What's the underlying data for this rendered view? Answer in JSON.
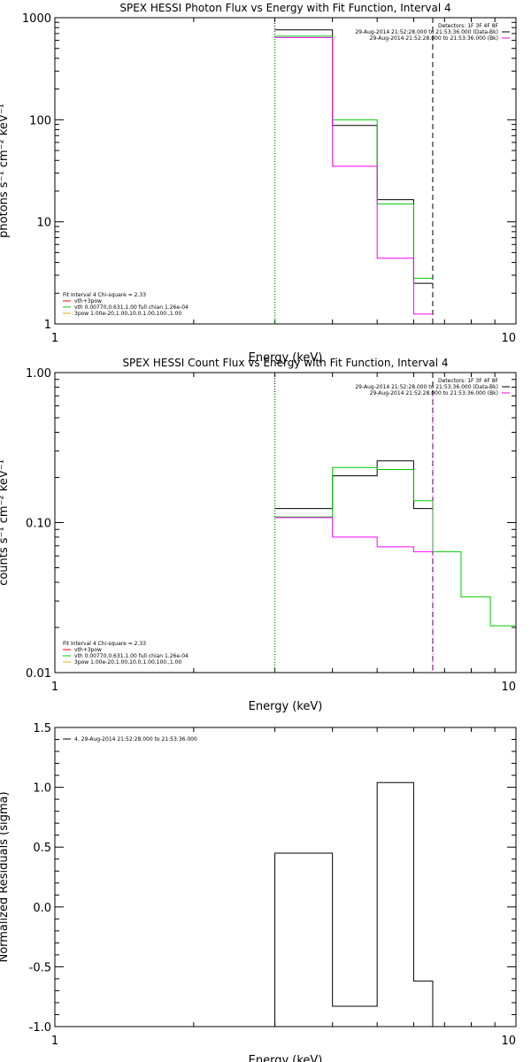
{
  "chart_data": [
    {
      "type": "line",
      "title": "SPEX HESSI Photon Flux vs Energy with Fit Function, Interval 4",
      "xlabel": "Energy (keV)",
      "ylabel": "photons s⁻¹ cm⁻² keV⁻¹",
      "xscale": "log",
      "yscale": "log",
      "xlim": [
        1,
        10
      ],
      "ylim": [
        1,
        1000
      ],
      "xticks": [
        {
          "v": 1,
          "label": "1"
        },
        {
          "v": 10,
          "label": "10"
        }
      ],
      "yticks": [
        {
          "v": 1,
          "label": "1"
        },
        {
          "v": 10,
          "label": "10"
        },
        {
          "v": 100,
          "label": "100"
        },
        {
          "v": 1000,
          "label": "1000"
        }
      ],
      "vlines": [
        {
          "x": 3.0,
          "style": "dotted",
          "color": "#000000"
        },
        {
          "x": 6.6,
          "style": "dashed",
          "color": "#000000"
        }
      ],
      "legend_top": {
        "position": "top-right",
        "lines": [
          {
            "text": "Detectors: 1F 3F 4F 8F",
            "color": ""
          },
          {
            "text": "29-Aug-2014 21:52:28.000 to 21:53:36.000 (Data-Bk)",
            "color": "#000000"
          },
          {
            "text": "29-Aug-2014 21:52:28.000 to 21:53:36.000 (Bk)",
            "color": "#ff00ff"
          }
        ]
      },
      "legend_bottom": {
        "position": "bottom-left",
        "lines": [
          {
            "text": "Fit Interval 4   Chi-square = 2.33",
            "color": ""
          },
          {
            "text": "vth+3pow",
            "color": "#ff0000"
          },
          {
            "text": "vth 0.00770,0.631,1.00   full chian 1.26e-04",
            "color": "#00cc00"
          },
          {
            "text": "3pow 1.00e-20,1.00,10.0,1.00,100.,1.00",
            "color": "#e0b000"
          }
        ]
      },
      "series": [
        {
          "color": "#000000",
          "edges": [
            3.0,
            4.0,
            5.0,
            6.0,
            6.6
          ],
          "values": [
            760,
            88,
            16.5,
            2.5
          ]
        },
        {
          "color": "#00cc00",
          "edges": [
            3.0,
            4.0,
            5.0,
            6.0,
            6.6
          ],
          "values": [
            660,
            100,
            15,
            2.8
          ]
        },
        {
          "color": "#ff00ff",
          "edges": [
            3.0,
            4.0,
            5.0,
            6.0,
            6.6
          ],
          "values": [
            640,
            35,
            4.4,
            1.25
          ]
        }
      ],
      "drops": [
        {
          "x": 3.0,
          "color": "#00cc00"
        }
      ]
    },
    {
      "type": "line",
      "title": "SPEX HESSI Count Flux vs Energy with Fit Function, Interval 4",
      "xlabel": "Energy (keV)",
      "ylabel": "counts s⁻¹ cm⁻² keV⁻¹",
      "xscale": "log",
      "yscale": "log",
      "xlim": [
        1,
        10
      ],
      "ylim": [
        0.01,
        1
      ],
      "xticks": [
        {
          "v": 1,
          "label": "1"
        },
        {
          "v": 10,
          "label": "10"
        }
      ],
      "yticks": [
        {
          "v": 0.01,
          "label": "0.01"
        },
        {
          "v": 0.1,
          "label": "0.10"
        },
        {
          "v": 1,
          "label": "1.00"
        }
      ],
      "vlines": [
        {
          "x": 3.0,
          "style": "dotted",
          "color": "#000000"
        },
        {
          "x": 6.6,
          "style": "dashed",
          "color": "#000000"
        }
      ],
      "legend_top": {
        "position": "top-right",
        "lines": [
          {
            "text": "Detectors: 1F 3F 4F 8F",
            "color": ""
          },
          {
            "text": "29-Aug-2014 21:52:28.000 to 21:53:36.000 (Data-Bk)",
            "color": "#000000"
          },
          {
            "text": "29-Aug-2014 21:52:28.000 to 21:53:36.000 (Bk)",
            "color": "#ff00ff"
          }
        ]
      },
      "legend_bottom": {
        "position": "bottom-left",
        "lines": [
          {
            "text": "Fit Interval 4   Chi-square = 2.33",
            "color": ""
          },
          {
            "text": "vth+3pow",
            "color": "#ff0000"
          },
          {
            "text": "vth 0.00770,0.631,1.00   full chian 1.26e-04",
            "color": "#00cc00"
          },
          {
            "text": "3pow 1.00e-20,1.00,10.0,1.00,100.,1.00",
            "color": "#e0b000"
          }
        ]
      },
      "series": [
        {
          "color": "#000000",
          "edges": [
            3.0,
            4.0,
            5.0,
            6.0,
            6.6
          ],
          "values": [
            0.124,
            0.205,
            0.258,
            0.124
          ]
        },
        {
          "color": "#00cc00",
          "edges": [
            3.0,
            4.0,
            5.0,
            6.0,
            6.6,
            7.6,
            8.8,
            10.0
          ],
          "values": [
            0.109,
            0.233,
            0.226,
            0.14,
            0.064,
            0.032,
            0.0205
          ]
        },
        {
          "color": "#ff00ff",
          "edges": [
            3.0,
            4.0,
            5.0,
            6.0,
            6.6
          ],
          "values": [
            0.108,
            0.08,
            0.069,
            0.064
          ]
        }
      ],
      "drops": [
        {
          "x": 3.0,
          "color": "#00cc00"
        },
        {
          "x": 6.6,
          "color": "#ff00ff"
        }
      ]
    },
    {
      "type": "line",
      "title": "",
      "xlabel": "Energy (keV)",
      "ylabel": "Normalized Residuals (sigma)",
      "xscale": "log",
      "yscale": "linear",
      "xlim": [
        1,
        10
      ],
      "ylim": [
        -1.0,
        1.5
      ],
      "xticks": [
        {
          "v": 1,
          "label": "1"
        },
        {
          "v": 10,
          "label": "10"
        }
      ],
      "yticks": [
        {
          "v": -1.0,
          "label": "-1.0"
        },
        {
          "v": -0.5,
          "label": "-0.5"
        },
        {
          "v": 0.0,
          "label": "0.0"
        },
        {
          "v": 0.5,
          "label": "0.5"
        },
        {
          "v": 1.0,
          "label": "1.0"
        },
        {
          "v": 1.5,
          "label": "1.5"
        }
      ],
      "vlines": [],
      "legend_top": {
        "position": "top-left",
        "lines": [
          {
            "text": "4. 29-Aug-2014 21:52:28.000 to 21:53:36.000",
            "color": "#000000"
          }
        ]
      },
      "legend_bottom": {
        "position": "",
        "lines": []
      },
      "series": [
        {
          "color": "#000000",
          "edges": [
            3.0,
            4.0,
            5.0,
            6.0,
            6.6
          ],
          "values": [
            0.45,
            -0.83,
            1.04,
            -0.62
          ],
          "baseline": -1.0
        }
      ],
      "drops": []
    }
  ]
}
